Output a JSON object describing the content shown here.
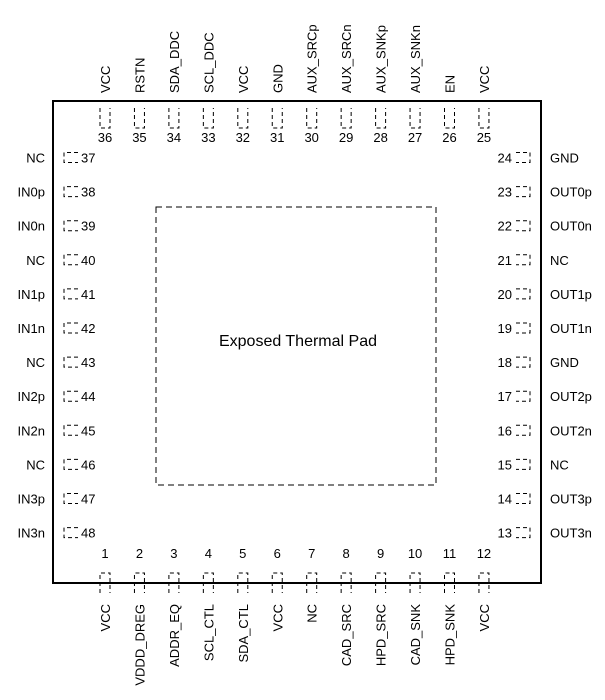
{
  "package": {
    "pad_label": "Exposed Thermal Pad",
    "bottom_pins": [
      {
        "num": "1",
        "name": "VCC"
      },
      {
        "num": "2",
        "name": "VDDD_DREG"
      },
      {
        "num": "3",
        "name": "ADDR_EQ"
      },
      {
        "num": "4",
        "name": "SCL_CTL"
      },
      {
        "num": "5",
        "name": "SDA_CTL"
      },
      {
        "num": "6",
        "name": "VCC"
      },
      {
        "num": "7",
        "name": "NC"
      },
      {
        "num": "8",
        "name": "CAD_SRC"
      },
      {
        "num": "9",
        "name": "HPD_SRC"
      },
      {
        "num": "10",
        "name": "CAD_SNK"
      },
      {
        "num": "11",
        "name": "HPD_SNK"
      },
      {
        "num": "12",
        "name": "VCC"
      }
    ],
    "right_pins": [
      {
        "num": "13",
        "name": "OUT3n"
      },
      {
        "num": "14",
        "name": "OUT3p"
      },
      {
        "num": "15",
        "name": "NC"
      },
      {
        "num": "16",
        "name": "OUT2n"
      },
      {
        "num": "17",
        "name": "OUT2p"
      },
      {
        "num": "18",
        "name": "GND"
      },
      {
        "num": "19",
        "name": "OUT1n"
      },
      {
        "num": "20",
        "name": "OUT1p"
      },
      {
        "num": "21",
        "name": "NC"
      },
      {
        "num": "22",
        "name": "OUT0n"
      },
      {
        "num": "23",
        "name": "OUT0p"
      },
      {
        "num": "24",
        "name": "GND"
      }
    ],
    "top_pins": [
      {
        "num": "25",
        "name": "VCC"
      },
      {
        "num": "26",
        "name": "EN"
      },
      {
        "num": "27",
        "name": "AUX_SNKn"
      },
      {
        "num": "28",
        "name": "AUX_SNKp"
      },
      {
        "num": "29",
        "name": "AUX_SRCn"
      },
      {
        "num": "30",
        "name": "AUX_SRCp"
      },
      {
        "num": "31",
        "name": "GND"
      },
      {
        "num": "32",
        "name": "VCC"
      },
      {
        "num": "33",
        "name": "SCL_DDC"
      },
      {
        "num": "34",
        "name": "SDA_DDC"
      },
      {
        "num": "35",
        "name": "RSTN"
      },
      {
        "num": "36",
        "name": "VCC"
      }
    ],
    "left_pins": [
      {
        "num": "37",
        "name": "NC"
      },
      {
        "num": "38",
        "name": "IN0p"
      },
      {
        "num": "39",
        "name": "IN0n"
      },
      {
        "num": "40",
        "name": "NC"
      },
      {
        "num": "41",
        "name": "IN1p"
      },
      {
        "num": "42",
        "name": "IN1n"
      },
      {
        "num": "43",
        "name": "NC"
      },
      {
        "num": "44",
        "name": "IN2p"
      },
      {
        "num": "45",
        "name": "IN2n"
      },
      {
        "num": "46",
        "name": "NC"
      },
      {
        "num": "47",
        "name": "IN3p"
      },
      {
        "num": "48",
        "name": "IN3n"
      }
    ]
  }
}
